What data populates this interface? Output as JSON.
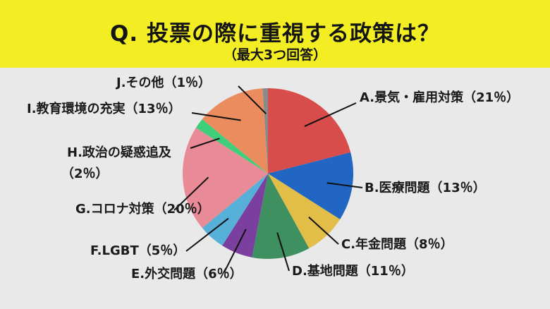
{
  "header": {
    "title": "Q. 投票の際に重視する政策は？",
    "subtitle": "（最大3つ回答）"
  },
  "chart_data": {
    "type": "pie",
    "title": "Q. 投票の際に重視する政策は？",
    "subtitle": "（最大3つ回答）",
    "slices": [
      {
        "label": "A.景気・雇用対策（21％）",
        "value": 21,
        "color": "#d94c4c"
      },
      {
        "label": "B.医療問題（13％）",
        "value": 13,
        "color": "#2266c4"
      },
      {
        "label": "C.年金問題（8％）",
        "value": 8,
        "color": "#e2bd47"
      },
      {
        "label": "D.基地問題（11％）",
        "value": 11,
        "color": "#3f9060"
      },
      {
        "label": "E.外交問題（6％）",
        "value": 6,
        "color": "#7b3fa0"
      },
      {
        "label": "F.LGBT（5％）",
        "value": 5,
        "color": "#57b0d8"
      },
      {
        "label": "G.コロナ対策（20％）",
        "value": 20,
        "color": "#e98a97"
      },
      {
        "label": "H.政治の疑惑追及（2％）",
        "value": 2,
        "color": "#3fcf7a"
      },
      {
        "label": "I.教育環境の充実（13％）",
        "value": 13,
        "color": "#ea8c5e"
      },
      {
        "label": "J.その他（1％）",
        "value": 1,
        "color": "#8a8a8a"
      }
    ]
  }
}
